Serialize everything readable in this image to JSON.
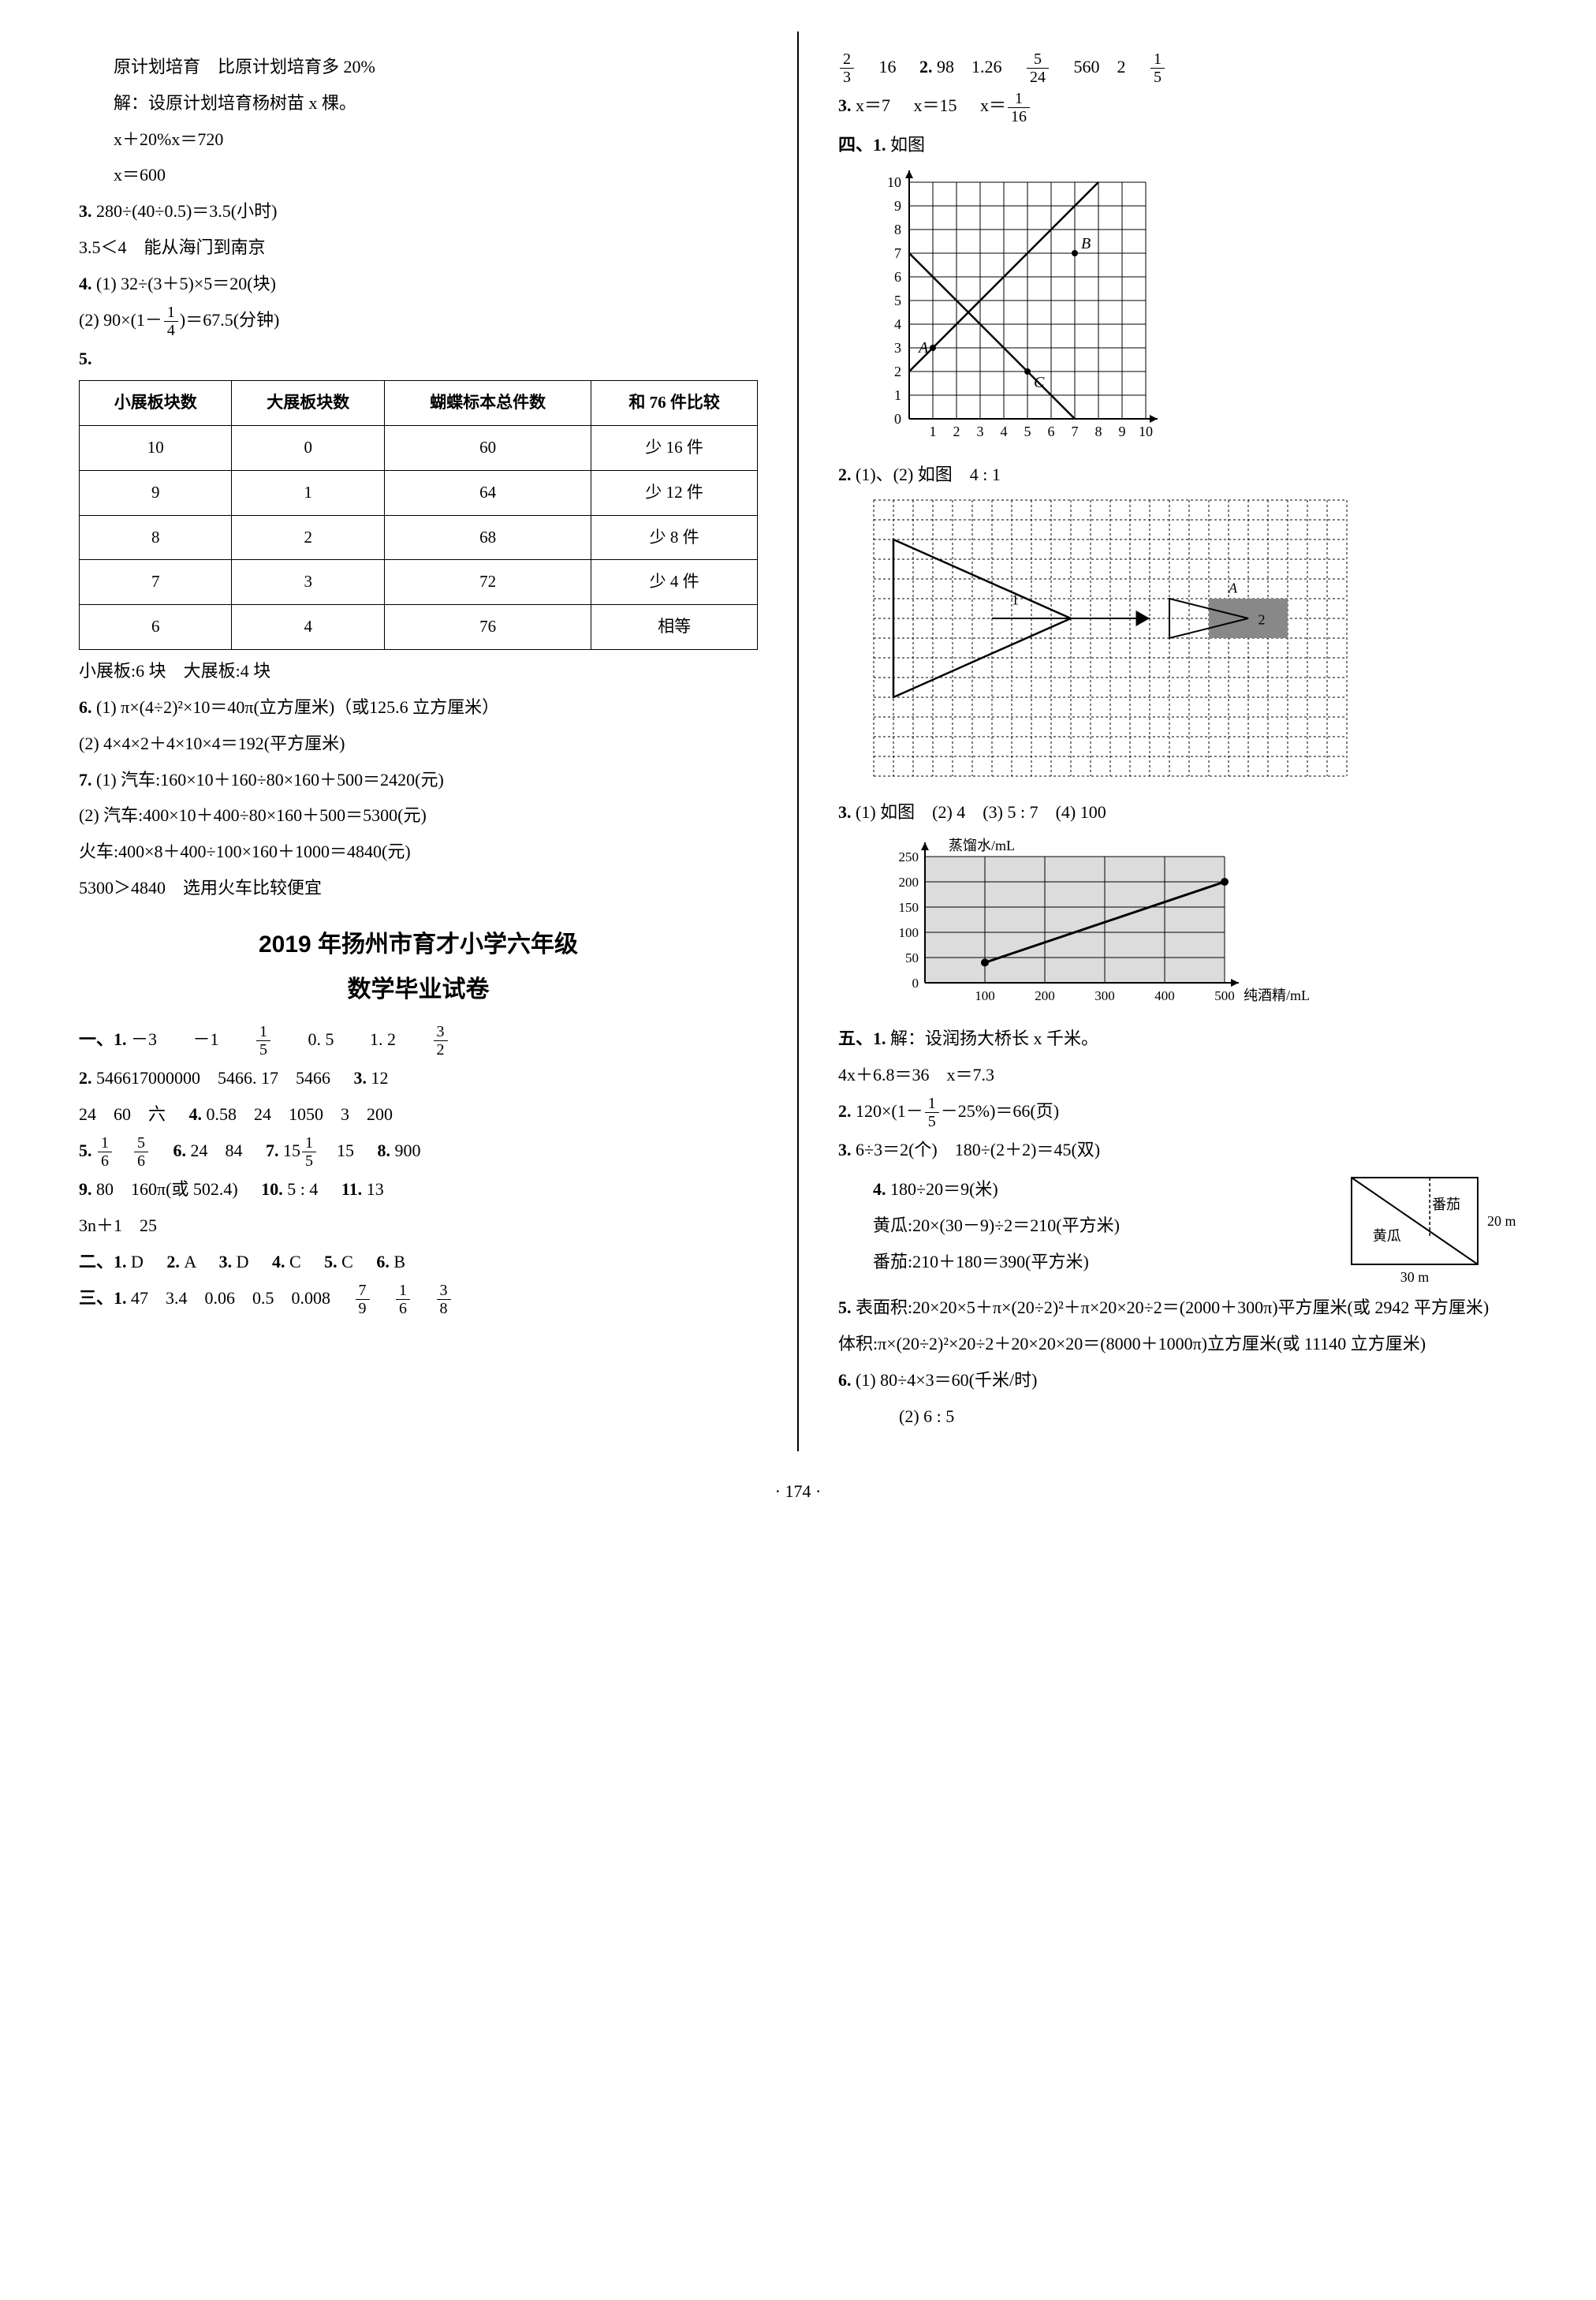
{
  "left": {
    "p1_l1": "原计划培育　比原计划培育多 20%",
    "p1_l2": "解：设原计划培育杨树苗 x 棵。",
    "p1_l3": "x＋20%x＝720",
    "p1_l4": "x＝600",
    "q3_l1": "280÷(40÷0.5)＝3.5(小时)",
    "q3_l2": "3.5＜4　能从海门到南京",
    "q4_1": "(1) 32÷(3＋5)×5＝20(块)",
    "q4_2a": "(2) 90×",
    "q4_2b": "＝67.5(分钟)",
    "table": {
      "headers": [
        "小展板块数",
        "大展板块数",
        "蝴蝶标本总件数",
        "和 76 件比较"
      ],
      "rows": [
        [
          "10",
          "0",
          "60",
          "少 16 件"
        ],
        [
          "9",
          "1",
          "64",
          "少 12 件"
        ],
        [
          "8",
          "2",
          "68",
          "少 8 件"
        ],
        [
          "7",
          "3",
          "72",
          "少 4 件"
        ],
        [
          "6",
          "4",
          "76",
          "相等"
        ]
      ]
    },
    "after_table": "小展板:6 块　大展板:4 块",
    "q6_1": "(1) π×(4÷2)²×10＝40π(立方厘米)（或125.6 立方厘米）",
    "q6_2": "(2) 4×4×2＋4×10×4＝192(平方厘米)",
    "q7_1": "(1) 汽车:160×10＋160÷80×160＋500＝2420(元)",
    "q7_2": "(2) 汽车:400×10＋400÷80×160＋500＝5300(元)",
    "q7_3": "火车:400×8＋400÷100×160＋1000＝4840(元)",
    "q7_4": "5300＞4840　选用火车比较便宜",
    "title1": "2019 年扬州市育才小学六年级",
    "title2": "数学毕业试卷",
    "s1_1a": "－3",
    "s1_1b": "－1",
    "s1_1d": "0. 5",
    "s1_1e": "1. 2",
    "s1_2": "546617000000　5466. 17　5466",
    "s1_3a": "12",
    "s1_3b": "24　60　六",
    "s1_4": "0.58　24　1050　3　200",
    "s1_6": "24　84",
    "s1_7b": "15",
    "s1_8": "900",
    "s1_9": "80　160π(或 502.4)",
    "s1_10": "5 : 4",
    "s1_11": "13",
    "s1_11b": "3n＋1　25",
    "s2": "D",
    "s2_2": "A",
    "s2_3": "D",
    "s2_4": "C",
    "s2_5": "C",
    "s2_6": "B",
    "s3_1": "47　3.4　0.06　0.5　0.008"
  },
  "right": {
    "top_a": "16",
    "top_b": "98　1.26",
    "top_c": "560　2",
    "r3a": "x＝7",
    "r3b": "x＝15",
    "r3c": "x＝",
    "sec4": "如图",
    "chart1": {
      "xticks": [
        1,
        2,
        3,
        4,
        5,
        6,
        7,
        8,
        9,
        10
      ],
      "yticks": [
        0,
        1,
        2,
        3,
        4,
        5,
        6,
        7,
        8,
        9,
        10
      ],
      "labels": {
        "A": "A",
        "B": "B",
        "C": "C"
      },
      "A": [
        1,
        3
      ],
      "B": [
        7,
        7
      ],
      "C": [
        5,
        2
      ],
      "line1": [
        [
          0,
          2
        ],
        [
          10,
          12
        ]
      ],
      "line2": [
        [
          0,
          7
        ],
        [
          10,
          -3
        ]
      ],
      "grid_color": "#000000"
    },
    "q2_1": "(1)、(2) 如图　4 : 1",
    "chart2": {
      "cols": 24,
      "rows": 14,
      "dash_color": "#000"
    },
    "q3_1": "(1) 如图　(2) 4　(3) 5 : 7　(4) 100",
    "chart3": {
      "ylabel": "蒸馏水/mL",
      "xlabel": "纯酒精/mL",
      "yticks": [
        0,
        50,
        100,
        150,
        200,
        250
      ],
      "xticks": [
        100,
        200,
        300,
        400,
        500
      ],
      "points": [
        [
          100,
          40
        ],
        [
          500,
          200
        ]
      ],
      "bg": "#e0e0e0",
      "line": "#000"
    },
    "sec5_1a": "解：设润扬大桥长 x 千米。",
    "sec5_1b": "4x＋6.8＝36　x＝7.3",
    "sec5_2a": "120×",
    "sec5_2b": "－25%",
    "sec5_2c": "＝66(页)",
    "sec5_3": "6÷3＝2(个)　180÷(2＋2)＝45(双)",
    "sec5_4a": "180÷20＝9(米)",
    "sec5_4b": "黄瓜:20×(30－9)÷2＝210(平方米)",
    "sec5_4c": "番茄:210＋180＝390(平方米)",
    "box4": {
      "w": "30 m",
      "h": "20 m",
      "l1": "番茄",
      "l2": "黄瓜"
    },
    "sec5_5a": "表面积:20×20×5＋π×(20÷2)²＋π×20×20÷2＝(2000＋300π)平方厘米(或 2942 平方厘米)",
    "sec5_5b": "体积:π×(20÷2)²×20÷2＋20×20×20＝(8000＋1000π)立方厘米(或 11140 立方厘米)",
    "sec5_6a": "(1) 80÷4×3＝60(千米/时)",
    "sec5_6b": "(2) 6 : 5"
  },
  "page_number": "· 174 ·"
}
